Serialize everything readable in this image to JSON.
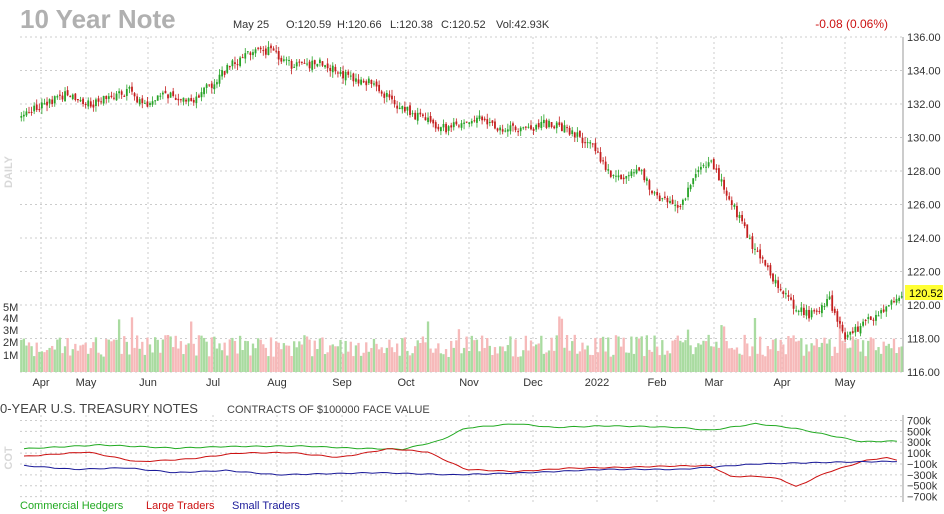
{
  "header": {
    "title": "10 Year Note",
    "date": "May 25",
    "open": "O:120.59",
    "high": "H:120.66",
    "low": "L:120.38",
    "close": "C:120.52",
    "volume": "Vol:42.93K",
    "change": "-0.08 (0.06%)"
  },
  "colors": {
    "up": "#27a327",
    "down": "#c41e1e",
    "vol_up": "#a9dba0",
    "vol_down": "#f6b9b9",
    "grid": "#cccccc",
    "highlight": "#ffff33",
    "commercial": "#22aa22",
    "large": "#cc1111",
    "small": "#1a1a99"
  },
  "chart_data": [
    {
      "type": "candlestick",
      "timeframe": "DAILY",
      "x_labels": [
        "Apr",
        "May",
        "Jun",
        "Jul",
        "Aug",
        "Sep",
        "Oct",
        "Nov",
        "Dec",
        "2022",
        "Feb",
        "Mar",
        "Apr",
        "May"
      ],
      "ylim": [
        116,
        136
      ],
      "y_ticks": [
        "136.00",
        "134.00",
        "132.00",
        "130.00",
        "128.00",
        "126.00",
        "124.00",
        "122.00",
        "120.00",
        "118.00",
        "116.00"
      ],
      "last_price": "120.52",
      "close_anchors": [
        [
          0,
          131.2
        ],
        [
          8,
          131.9
        ],
        [
          18,
          132.6
        ],
        [
          28,
          132.0
        ],
        [
          42,
          132.8
        ],
        [
          48,
          131.9
        ],
        [
          56,
          132.6
        ],
        [
          66,
          132.1
        ],
        [
          76,
          133.5
        ],
        [
          86,
          134.9
        ],
        [
          96,
          135.2
        ],
        [
          106,
          134.2
        ],
        [
          116,
          134.5
        ],
        [
          126,
          133.7
        ],
        [
          136,
          133.2
        ],
        [
          146,
          131.9
        ],
        [
          156,
          131.1
        ],
        [
          166,
          130.5
        ],
        [
          176,
          131.2
        ],
        [
          186,
          130.6
        ],
        [
          196,
          130.5
        ],
        [
          206,
          130.9
        ],
        [
          214,
          130.3
        ],
        [
          222,
          129.5
        ],
        [
          230,
          127.6
        ],
        [
          240,
          128.0
        ],
        [
          248,
          126.2
        ],
        [
          256,
          125.9
        ],
        [
          262,
          127.8
        ],
        [
          268,
          128.6
        ],
        [
          276,
          126.1
        ],
        [
          284,
          123.6
        ],
        [
          292,
          121.6
        ],
        [
          300,
          120.0
        ],
        [
          306,
          119.4
        ],
        [
          314,
          120.3
        ],
        [
          320,
          118.0
        ],
        [
          328,
          119.0
        ],
        [
          336,
          119.8
        ],
        [
          342,
          120.52
        ]
      ]
    },
    {
      "type": "bar",
      "name": "Volume",
      "y_ticks": [
        "5M",
        "4M",
        "3M",
        "2M",
        "1M"
      ],
      "ylim": [
        0,
        5800000
      ]
    },
    {
      "type": "line",
      "title": "0-YEAR U.S. TREASURY NOTES",
      "subtitle": "CONTRACTS OF $100000 FACE VALUE",
      "side_label": "COT",
      "ylim": [
        -800000,
        800000
      ],
      "y_ticks": [
        "700k",
        "500k",
        "300k",
        "100k",
        "−100k",
        "−300k",
        "−500k",
        "−700k"
      ],
      "y_tick_values": [
        700000,
        500000,
        300000,
        100000,
        -100000,
        -300000,
        -500000,
        -700000
      ],
      "series": [
        {
          "name": "Commercial Hedgers",
          "anchors": [
            [
              0,
              180000
            ],
            [
              30,
              250000
            ],
            [
              60,
              190000
            ],
            [
              80,
              220000
            ],
            [
              110,
              230000
            ],
            [
              130,
              190000
            ],
            [
              150,
              170000
            ],
            [
              165,
              330000
            ],
            [
              175,
              560000
            ],
            [
              195,
              640000
            ],
            [
              210,
              570000
            ],
            [
              230,
              600000
            ],
            [
              245,
              590000
            ],
            [
              260,
              570000
            ],
            [
              272,
              520000
            ],
            [
              290,
              640000
            ],
            [
              305,
              560000
            ],
            [
              320,
              420000
            ],
            [
              332,
              310000
            ],
            [
              348,
              320000
            ]
          ]
        },
        {
          "name": "Large Traders",
          "anchors": [
            [
              0,
              40000
            ],
            [
              25,
              120000
            ],
            [
              45,
              -60000
            ],
            [
              65,
              -10000
            ],
            [
              85,
              100000
            ],
            [
              105,
              110000
            ],
            [
              125,
              20000
            ],
            [
              145,
              180000
            ],
            [
              160,
              120000
            ],
            [
              175,
              -200000
            ],
            [
              195,
              -240000
            ],
            [
              215,
              -180000
            ],
            [
              240,
              -160000
            ],
            [
              255,
              -140000
            ],
            [
              272,
              -130000
            ],
            [
              280,
              -330000
            ],
            [
              292,
              -330000
            ],
            [
              300,
              -380000
            ],
            [
              306,
              -520000
            ],
            [
              318,
              -260000
            ],
            [
              335,
              -20000
            ],
            [
              342,
              10000
            ],
            [
              348,
              -40000
            ]
          ]
        },
        {
          "name": "Small Traders",
          "anchors": [
            [
              0,
              -130000
            ],
            [
              20,
              -200000
            ],
            [
              40,
              -170000
            ],
            [
              60,
              -260000
            ],
            [
              80,
              -220000
            ],
            [
              100,
              -300000
            ],
            [
              140,
              -260000
            ],
            [
              170,
              -300000
            ],
            [
              200,
              -260000
            ],
            [
              230,
              -200000
            ],
            [
              260,
              -200000
            ],
            [
              290,
              -100000
            ],
            [
              320,
              -70000
            ],
            [
              348,
              -50000
            ]
          ]
        }
      ]
    }
  ]
}
